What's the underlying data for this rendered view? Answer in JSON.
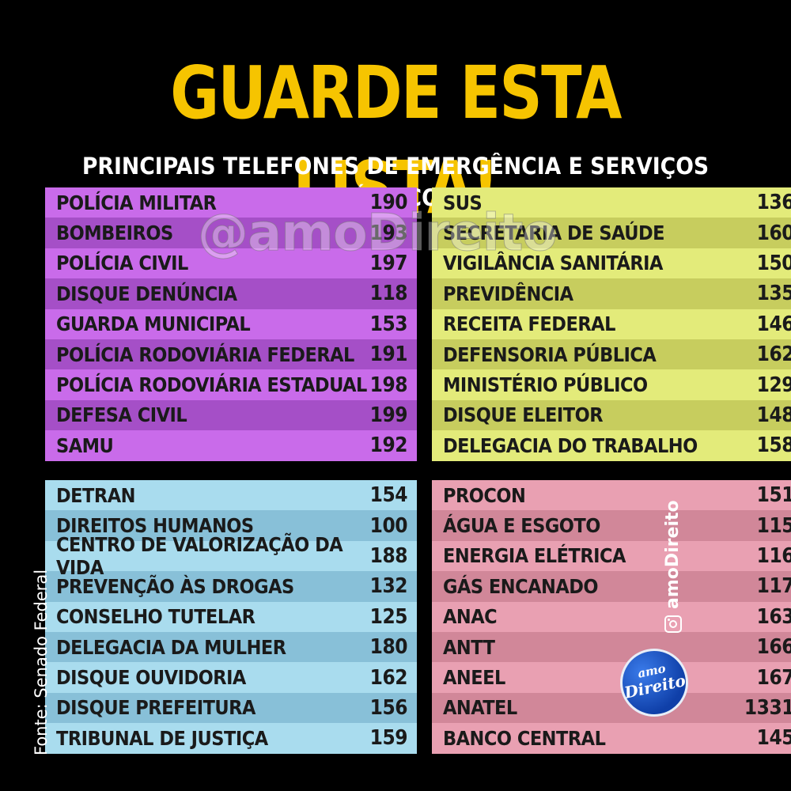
{
  "title": "GUARDE ESTA LISTA!",
  "subtitle": "PRINCIPAIS TELEFONES DE EMERGÊNCIA E SERVIÇOS PÚBLICOS",
  "watermark": "@amoDireito",
  "source": "Fonte: Senado Federal",
  "instagram_handle": "amoDireito",
  "logo": {
    "line1": "amo",
    "line2": "Direito"
  },
  "colors": {
    "title": "#f6c400",
    "purple": "#c96bea",
    "yellow": "#e3eb7a",
    "blue": "#a9dcee",
    "pink": "#e9a0b2"
  },
  "panels": {
    "top_left": [
      {
        "label": "POLÍCIA MILITAR",
        "number": "190"
      },
      {
        "label": "BOMBEIROS",
        "number": "193"
      },
      {
        "label": "POLÍCIA CIVIL",
        "number": "197"
      },
      {
        "label": "DISQUE DENÚNCIA",
        "number": "118"
      },
      {
        "label": "GUARDA MUNICIPAL",
        "number": "153"
      },
      {
        "label": "POLÍCIA RODOVIÁRIA FEDERAL",
        "number": "191"
      },
      {
        "label": "POLÍCIA RODOVIÁRIA ESTADUAL",
        "number": "198"
      },
      {
        "label": "DEFESA CIVIL",
        "number": "199"
      },
      {
        "label": "SAMU",
        "number": "192"
      }
    ],
    "top_right": [
      {
        "label": "SUS",
        "number": "136"
      },
      {
        "label": "SECRETARIA DE SAÚDE",
        "number": "160"
      },
      {
        "label": "VIGILÂNCIA SANITÁRIA",
        "number": "150"
      },
      {
        "label": "PREVIDÊNCIA",
        "number": "135"
      },
      {
        "label": "RECEITA FEDERAL",
        "number": "146"
      },
      {
        "label": "DEFENSORIA PÚBLICA",
        "number": "162"
      },
      {
        "label": "MINISTÉRIO PÚBLICO",
        "number": "129"
      },
      {
        "label": "DISQUE ELEITOR",
        "number": "148"
      },
      {
        "label": "DELEGACIA DO TRABALHO",
        "number": "158"
      }
    ],
    "bottom_left": [
      {
        "label": "DETRAN",
        "number": "154"
      },
      {
        "label": "DIREITOS HUMANOS",
        "number": "100"
      },
      {
        "label": "CENTRO DE VALORIZAÇÃO DA VIDA",
        "number": "188"
      },
      {
        "label": "PREVENÇÃO ÀS DROGAS",
        "number": "132"
      },
      {
        "label": "CONSELHO TUTELAR",
        "number": "125"
      },
      {
        "label": "DELEGACIA DA MULHER",
        "number": "180"
      },
      {
        "label": "DISQUE OUVIDORIA",
        "number": "162"
      },
      {
        "label": "DISQUE PREFEITURA",
        "number": "156"
      },
      {
        "label": "TRIBUNAL DE JUSTIÇA",
        "number": "159"
      }
    ],
    "bottom_right": [
      {
        "label": "PROCON",
        "number": "151"
      },
      {
        "label": "ÁGUA E ESGOTO",
        "number": "115"
      },
      {
        "label": "ENERGIA ELÉTRICA",
        "number": "116"
      },
      {
        "label": "GÁS ENCANADO",
        "number": "117"
      },
      {
        "label": "ANAC",
        "number": "163"
      },
      {
        "label": "ANTT",
        "number": "166"
      },
      {
        "label": "ANEEL",
        "number": "167"
      },
      {
        "label": "ANATEL",
        "number": "1331"
      },
      {
        "label": "BANCO CENTRAL",
        "number": "145"
      }
    ]
  }
}
